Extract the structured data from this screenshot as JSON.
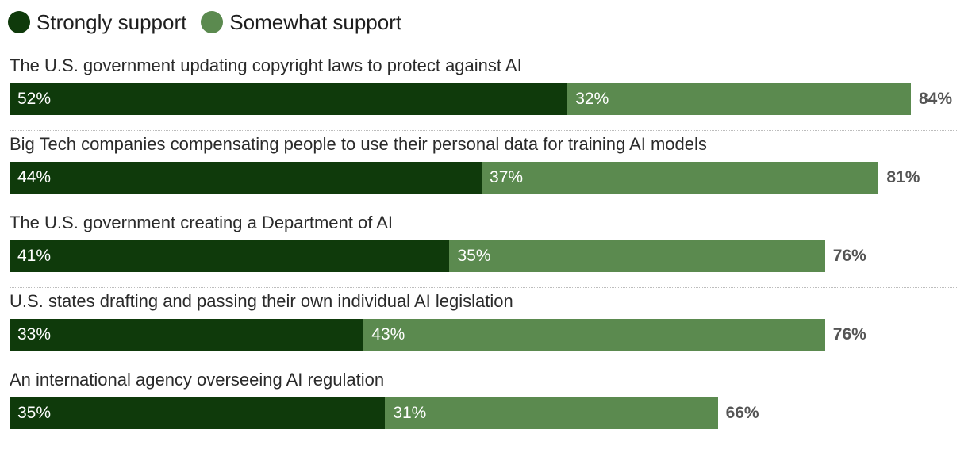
{
  "colors": {
    "strongly": "#0f3a0b",
    "somewhat": "#5b8a4f",
    "total_text": "#555555"
  },
  "legend": {
    "items": [
      {
        "label": "Strongly support",
        "color": "#0f3a0b"
      },
      {
        "label": "Somewhat support",
        "color": "#5b8a4f"
      }
    ]
  },
  "chart_data": {
    "type": "bar",
    "orientation": "horizontal",
    "stacked": true,
    "xlim": [
      0,
      84
    ],
    "legend_position": "top-left",
    "grid": false,
    "categories": [
      "The U.S. government updating copyright laws to protect against AI",
      "Big Tech companies compensating people to use their personal data for training AI models",
      "The U.S. government creating a Department of AI",
      "U.S. states drafting and passing their own individual AI legislation",
      "An international agency overseeing AI regulation"
    ],
    "series": [
      {
        "name": "Strongly support",
        "values": [
          52,
          44,
          41,
          33,
          35
        ],
        "labels": [
          "52%",
          "44%",
          "41%",
          "33%",
          "35%"
        ]
      },
      {
        "name": "Somewhat support",
        "values": [
          32,
          37,
          35,
          43,
          31
        ],
        "labels": [
          "32%",
          "37%",
          "35%",
          "43%",
          "31%"
        ]
      }
    ],
    "totals": [
      84,
      81,
      76,
      76,
      66
    ],
    "total_labels": [
      "84%",
      "81%",
      "76%",
      "76%",
      "66%"
    ]
  }
}
